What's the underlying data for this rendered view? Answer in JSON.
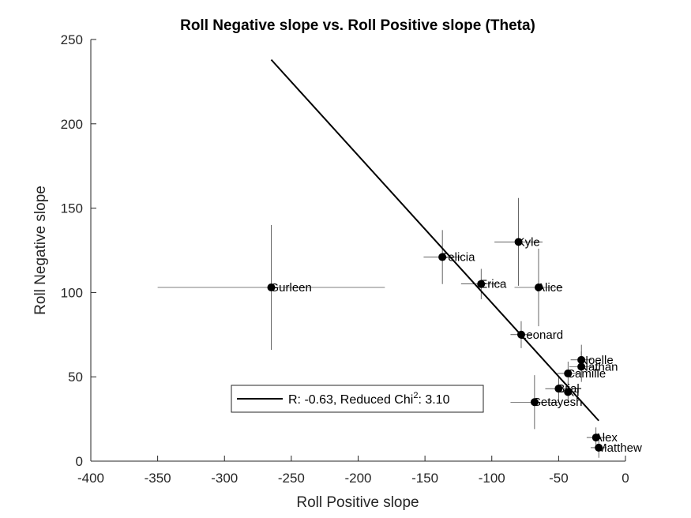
{
  "chart_data": {
    "type": "scatter",
    "title": "Roll Negative slope vs. Roll Positive slope (Theta)",
    "xlabel": "Roll Positive slope",
    "ylabel": "Roll Negative slope",
    "xlim": [
      -400,
      0
    ],
    "ylim": [
      0,
      250
    ],
    "xticks": [
      -400,
      -350,
      -300,
      -250,
      -200,
      -150,
      -100,
      -50,
      0
    ],
    "yticks": [
      0,
      50,
      100,
      150,
      200,
      250
    ],
    "x_tick_labels": [
      "-400",
      "-350",
      "-300",
      "-250",
      "-200",
      "-150",
      "-100",
      "-50",
      "0"
    ],
    "y_tick_labels": [
      "0",
      "50",
      "100",
      "150",
      "200",
      "250"
    ],
    "grid": false,
    "points": [
      {
        "label": "Gurleen",
        "x": -265,
        "y": 103,
        "xerr": 85,
        "yerr": 37
      },
      {
        "label": "Felicia",
        "x": -137,
        "y": 121,
        "xerr": 14,
        "yerr": 16
      },
      {
        "label": "Erica",
        "x": -108,
        "y": 105,
        "xerr": 15,
        "yerr": 9
      },
      {
        "label": "Kyle",
        "x": -80,
        "y": 130,
        "xerr": 18,
        "yerr": 26
      },
      {
        "label": "Alice",
        "x": -65,
        "y": 103,
        "xerr": 18,
        "yerr": 23
      },
      {
        "label": "Leonard",
        "x": -78,
        "y": 75,
        "xerr": 8,
        "yerr": 8
      },
      {
        "label": "Noelle",
        "x": -33,
        "y": 60,
        "xerr": 8,
        "yerr": 9
      },
      {
        "label": "Nathan",
        "x": -33,
        "y": 56,
        "xerr": 9,
        "yerr": 9
      },
      {
        "label": "Camille",
        "x": -43,
        "y": 52,
        "xerr": 8,
        "yerr": 7
      },
      {
        "label": "Bijal",
        "x": -50,
        "y": 43,
        "xerr": 10,
        "yerr": 7
      },
      {
        "label": "KT",
        "x": -43,
        "y": 41,
        "xerr": 8,
        "yerr": 6
      },
      {
        "label": "Setayesh",
        "x": -68,
        "y": 35,
        "xerr": 18,
        "yerr": 16
      },
      {
        "label": "Alex",
        "x": -22,
        "y": 14,
        "xerr": 7,
        "yerr": 6
      },
      {
        "label": "Matthew",
        "x": -20,
        "y": 8,
        "xerr": 6,
        "yerr": 6
      }
    ],
    "fit_line": {
      "x": [
        -265,
        -20
      ],
      "y": [
        238,
        24
      ]
    },
    "legend": {
      "text": "R: -0.63, Reduced Chi",
      "superscript": "2",
      "suffix": ": 3.10",
      "placement": "lower-center"
    },
    "colors": {
      "marker": "#000000",
      "errorbar": "#000000",
      "fit": "#000000",
      "axis": "#262626"
    }
  }
}
